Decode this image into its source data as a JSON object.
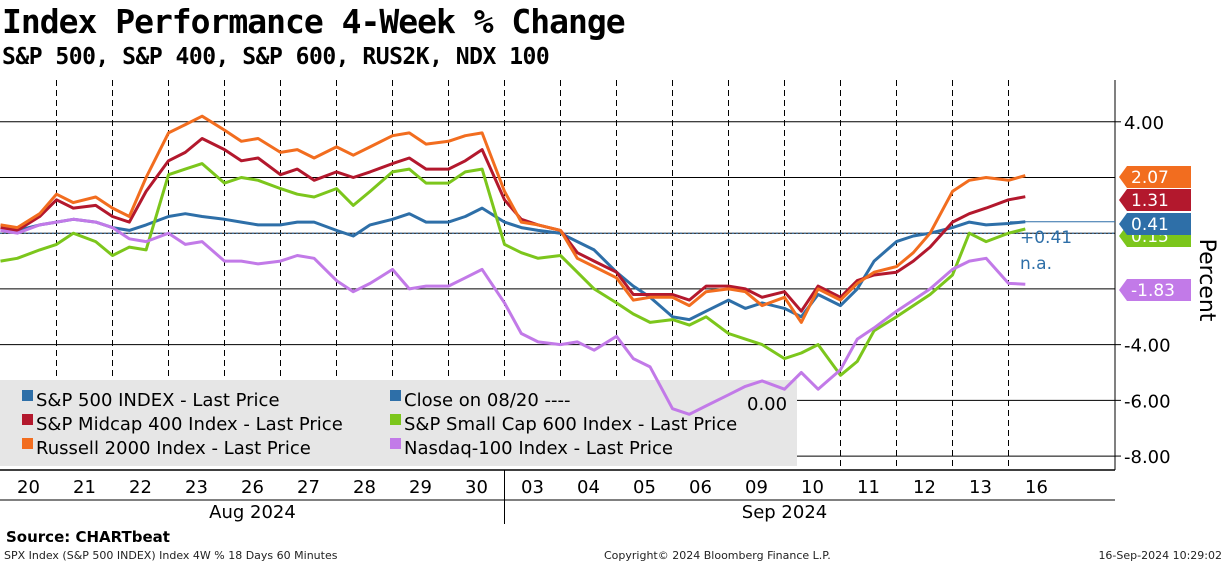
{
  "chart_data": {
    "type": "line",
    "title": "Index Performance 4-Week % Change",
    "subtitle": "S&P 500, S&P 400, S&P 600, RUS2K, NDX 100",
    "ylabel": "Percent",
    "ylim": [
      -8.5,
      5.5
    ],
    "yticks": [
      4.0,
      -4.0,
      -6.0,
      -8.0
    ],
    "ytick_labels": [
      "4.00",
      "-4.00",
      "-6.00",
      "-8.00"
    ],
    "gridlines_y": [
      4,
      2,
      0,
      -2,
      -4,
      -6,
      -8
    ],
    "x_days": [
      "20",
      "21",
      "22",
      "23",
      "26",
      "27",
      "28",
      "29",
      "30",
      "03",
      "04",
      "05",
      "06",
      "09",
      "10",
      "11",
      "12",
      "13",
      "16"
    ],
    "x_months": [
      {
        "label": "Aug 2024",
        "start_day": 0,
        "end_day": 9
      },
      {
        "label": "Sep 2024",
        "start_day": 9,
        "end_day": 19
      }
    ],
    "reference_line": {
      "name": "Close on 08/20",
      "value": 0.0,
      "value_label": "0.00"
    },
    "last_values": [
      {
        "series": "Russell 2000 Index - Last Price",
        "value": 2.07,
        "label": "2.07",
        "color": "#f26d1f"
      },
      {
        "series": "S&P Midcap 400 Index - Last Price",
        "value": 1.31,
        "label": "1.31",
        "color": "#b3182d"
      },
      {
        "series": "S&P 500 INDEX - Last Price",
        "value": 0.41,
        "label": "0.41",
        "color": "#2e6fa8"
      },
      {
        "series": "S&P Small Cap 600 Index - Last Price",
        "value": 0.15,
        "label": "0.15",
        "color": "#7cc61c"
      },
      {
        "series": "Nasdaq-100 Index - Last Price",
        "value": -1.83,
        "label": "-1.83",
        "color": "#c27ae8"
      }
    ],
    "blue_annotation": {
      "value_label": "+0.41",
      "na_label": "n.a."
    },
    "series": [
      {
        "name": "S&P 500 INDEX - Last Price",
        "color": "#2e6fa8",
        "x": [
          0,
          0.3,
          0.7,
          1,
          1.3,
          1.7,
          2,
          2.3,
          2.6,
          3,
          3.3,
          3.6,
          4,
          4.3,
          4.6,
          5,
          5.3,
          5.6,
          6,
          6.3,
          6.6,
          7,
          7.3,
          7.6,
          8,
          8.3,
          8.6,
          9,
          9.3,
          9.6,
          10,
          10.3,
          10.6,
          11,
          11.3,
          11.6,
          12,
          12.3,
          12.6,
          13,
          13.3,
          13.6,
          14,
          14.3,
          14.6,
          15,
          15.3,
          15.6,
          16,
          16.3,
          16.6,
          17,
          17.3,
          17.6,
          18,
          18.3
        ],
        "y": [
          0.1,
          0.1,
          0.3,
          0.4,
          0.5,
          0.4,
          0.2,
          0.1,
          0.3,
          0.6,
          0.7,
          0.6,
          0.5,
          0.4,
          0.3,
          0.3,
          0.4,
          0.4,
          0.1,
          -0.1,
          0.3,
          0.5,
          0.7,
          0.4,
          0.4,
          0.6,
          0.9,
          0.4,
          0.2,
          0.1,
          0.0,
          -0.3,
          -0.6,
          -1.4,
          -1.9,
          -2.3,
          -3.0,
          -3.1,
          -2.8,
          -2.4,
          -2.7,
          -2.5,
          -2.7,
          -3.0,
          -2.2,
          -2.6,
          -2.0,
          -1.0,
          -0.3,
          -0.1,
          0.0,
          0.2,
          0.4,
          0.3,
          0.35,
          0.41
        ]
      },
      {
        "name": "S&P Midcap 400 Index - Last Price",
        "color": "#b3182d",
        "x": [
          0,
          0.3,
          0.7,
          1,
          1.3,
          1.7,
          2,
          2.3,
          2.6,
          3,
          3.3,
          3.6,
          4,
          4.3,
          4.6,
          5,
          5.3,
          5.6,
          6,
          6.3,
          6.6,
          7,
          7.3,
          7.6,
          8,
          8.3,
          8.6,
          9,
          9.3,
          9.6,
          10,
          10.3,
          10.6,
          11,
          11.3,
          11.6,
          12,
          12.3,
          12.6,
          13,
          13.3,
          13.6,
          14,
          14.3,
          14.6,
          15,
          15.3,
          15.6,
          16,
          16.3,
          16.6,
          17,
          17.3,
          17.6,
          18,
          18.3
        ],
        "y": [
          0.2,
          0.1,
          0.6,
          1.2,
          0.9,
          1.0,
          0.6,
          0.4,
          1.5,
          2.6,
          2.9,
          3.4,
          3.0,
          2.6,
          2.7,
          2.1,
          2.3,
          1.9,
          2.2,
          2.0,
          2.2,
          2.5,
          2.7,
          2.3,
          2.3,
          2.6,
          3.0,
          1.2,
          0.5,
          0.3,
          0.1,
          -0.7,
          -1.0,
          -1.4,
          -2.2,
          -2.2,
          -2.2,
          -2.4,
          -1.9,
          -1.9,
          -2.0,
          -2.3,
          -2.1,
          -2.8,
          -1.9,
          -2.3,
          -1.7,
          -1.5,
          -1.4,
          -1.0,
          -0.5,
          0.4,
          0.7,
          0.9,
          1.2,
          1.31
        ]
      },
      {
        "name": "S&P Small Cap 600 Index - Last Price",
        "color": "#7cc61c",
        "x": [
          0,
          0.3,
          0.7,
          1,
          1.3,
          1.7,
          2,
          2.3,
          2.6,
          3,
          3.3,
          3.6,
          4,
          4.3,
          4.6,
          5,
          5.3,
          5.6,
          6,
          6.3,
          6.6,
          7,
          7.3,
          7.6,
          8,
          8.3,
          8.6,
          9,
          9.3,
          9.6,
          10,
          10.3,
          10.6,
          11,
          11.3,
          11.6,
          12,
          12.3,
          12.6,
          13,
          13.3,
          13.6,
          14,
          14.3,
          14.6,
          15,
          15.3,
          15.6,
          16,
          16.3,
          16.6,
          17,
          17.3,
          17.6,
          18,
          18.3
        ],
        "y": [
          -1.0,
          -0.9,
          -0.6,
          -0.4,
          0.0,
          -0.3,
          -0.8,
          -0.5,
          -0.6,
          2.1,
          2.3,
          2.5,
          1.8,
          2.0,
          1.9,
          1.6,
          1.4,
          1.3,
          1.6,
          1.0,
          1.5,
          2.2,
          2.3,
          1.8,
          1.8,
          2.2,
          2.3,
          -0.4,
          -0.7,
          -0.9,
          -0.8,
          -1.4,
          -2.0,
          -2.5,
          -2.9,
          -3.2,
          -3.1,
          -3.3,
          -3.0,
          -3.6,
          -3.8,
          -4.0,
          -4.5,
          -4.3,
          -4.0,
          -5.1,
          -4.6,
          -3.5,
          -3.0,
          -2.6,
          -2.2,
          -1.5,
          0.0,
          -0.3,
          0.0,
          0.15
        ]
      },
      {
        "name": "Russell 2000 Index - Last Price",
        "color": "#f26d1f",
        "x": [
          0,
          0.3,
          0.7,
          1,
          1.3,
          1.7,
          2,
          2.3,
          2.6,
          3,
          3.3,
          3.6,
          4,
          4.3,
          4.6,
          5,
          5.3,
          5.6,
          6,
          6.3,
          6.6,
          7,
          7.3,
          7.6,
          8,
          8.3,
          8.6,
          9,
          9.3,
          9.6,
          10,
          10.3,
          10.6,
          11,
          11.3,
          11.6,
          12,
          12.3,
          12.6,
          13,
          13.3,
          13.6,
          14,
          14.3,
          14.6,
          15,
          15.3,
          15.6,
          16,
          16.3,
          16.6,
          17,
          17.3,
          17.6,
          18,
          18.3
        ],
        "y": [
          0.3,
          0.2,
          0.7,
          1.4,
          1.1,
          1.3,
          0.9,
          0.6,
          2.0,
          3.6,
          3.9,
          4.2,
          3.7,
          3.3,
          3.4,
          2.9,
          3.0,
          2.7,
          3.1,
          2.8,
          3.1,
          3.5,
          3.6,
          3.2,
          3.3,
          3.5,
          3.6,
          1.5,
          0.4,
          0.3,
          0.1,
          -0.9,
          -1.2,
          -1.6,
          -2.4,
          -2.3,
          -2.3,
          -2.6,
          -2.1,
          -2.0,
          -2.1,
          -2.6,
          -2.3,
          -3.2,
          -2.0,
          -2.4,
          -1.8,
          -1.4,
          -1.2,
          -0.7,
          0.0,
          1.5,
          1.9,
          2.0,
          1.9,
          2.07
        ]
      },
      {
        "name": "Nasdaq-100 Index - Last Price",
        "color": "#c27ae8",
        "x": [
          0,
          0.3,
          0.7,
          1,
          1.3,
          1.7,
          2,
          2.3,
          2.6,
          3,
          3.3,
          3.6,
          4,
          4.3,
          4.6,
          5,
          5.3,
          5.6,
          6,
          6.3,
          6.6,
          7,
          7.3,
          7.6,
          8,
          8.3,
          8.6,
          9,
          9.3,
          9.6,
          10,
          10.3,
          10.6,
          11,
          11.3,
          11.6,
          12,
          12.3,
          12.6,
          13,
          13.3,
          13.6,
          14,
          14.3,
          14.6,
          15,
          15.3,
          15.6,
          16,
          16.3,
          16.6,
          17,
          17.3,
          17.6,
          18,
          18.3
        ],
        "y": [
          0.1,
          0.0,
          0.3,
          0.4,
          0.5,
          0.4,
          0.2,
          -0.2,
          -0.3,
          0.0,
          -0.4,
          -0.3,
          -1.0,
          -1.0,
          -1.1,
          -1.0,
          -0.8,
          -0.9,
          -1.7,
          -2.1,
          -1.8,
          -1.3,
          -2.0,
          -1.9,
          -1.9,
          -1.6,
          -1.3,
          -2.5,
          -3.6,
          -3.9,
          -4.0,
          -3.9,
          -4.2,
          -3.7,
          -4.5,
          -4.8,
          -6.3,
          -6.5,
          -6.2,
          -5.8,
          -5.5,
          -5.3,
          -5.6,
          -5.0,
          -5.6,
          -4.9,
          -3.8,
          -3.4,
          -2.8,
          -2.4,
          -2.0,
          -1.3,
          -1.0,
          -0.9,
          -1.8,
          -1.83
        ]
      }
    ],
    "legend": {
      "position": "bottom-left",
      "entries": [
        {
          "label": "S&P 500 INDEX - Last Price",
          "color": "#2e6fa8"
        },
        {
          "label": "Close on 08/20 ----",
          "color": "#2e6fa8"
        },
        {
          "label": "S&P Midcap 400 Index - Last Price",
          "color": "#b3182d"
        },
        {
          "label": "S&P Small Cap 600 Index - Last Price",
          "color": "#7cc61c"
        },
        {
          "label": "Russell 2000 Index - Last Price",
          "color": "#f26d1f"
        },
        {
          "label": "Nasdaq-100 Index - Last Price",
          "color": "#c27ae8"
        }
      ]
    }
  },
  "source": "Source:  CHARTbeat",
  "footer": {
    "left": "SPX Index (S&P 500 INDEX) Index 4W % 18 Days 60 Minutes",
    "center": "Copyright© 2024 Bloomberg Finance L.P.",
    "right": "16-Sep-2024 10:29:02"
  }
}
